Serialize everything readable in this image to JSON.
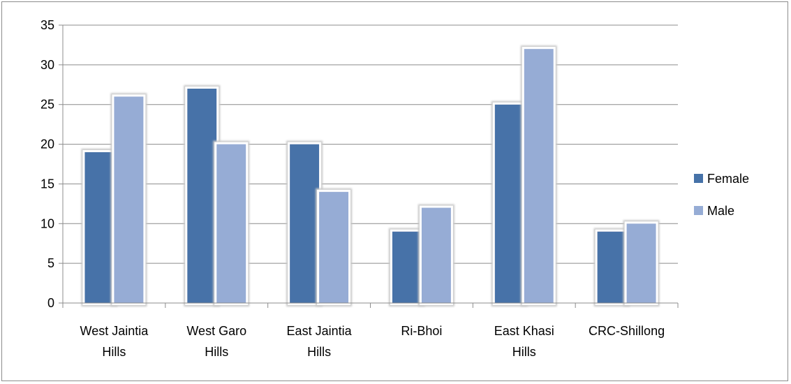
{
  "chart_data": {
    "type": "bar",
    "categories": [
      [
        "West Jaintia",
        "Hills"
      ],
      [
        "West Garo",
        "Hills"
      ],
      [
        "East Jaintia",
        "Hills"
      ],
      [
        "Ri-Bhoi"
      ],
      [
        "East Khasi",
        "Hills"
      ],
      [
        "CRC-Shillong"
      ]
    ],
    "series": [
      {
        "name": "Female",
        "color": "#4672A8",
        "values": [
          19,
          27,
          20,
          9,
          25,
          9
        ]
      },
      {
        "name": "Male",
        "color": "#96ACD5",
        "values": [
          26,
          20,
          14,
          12,
          32,
          10
        ]
      }
    ],
    "ylim": [
      0,
      35
    ],
    "yticks": [
      0,
      5,
      10,
      15,
      20,
      25,
      30,
      35
    ],
    "grid": true,
    "legend": "right"
  }
}
